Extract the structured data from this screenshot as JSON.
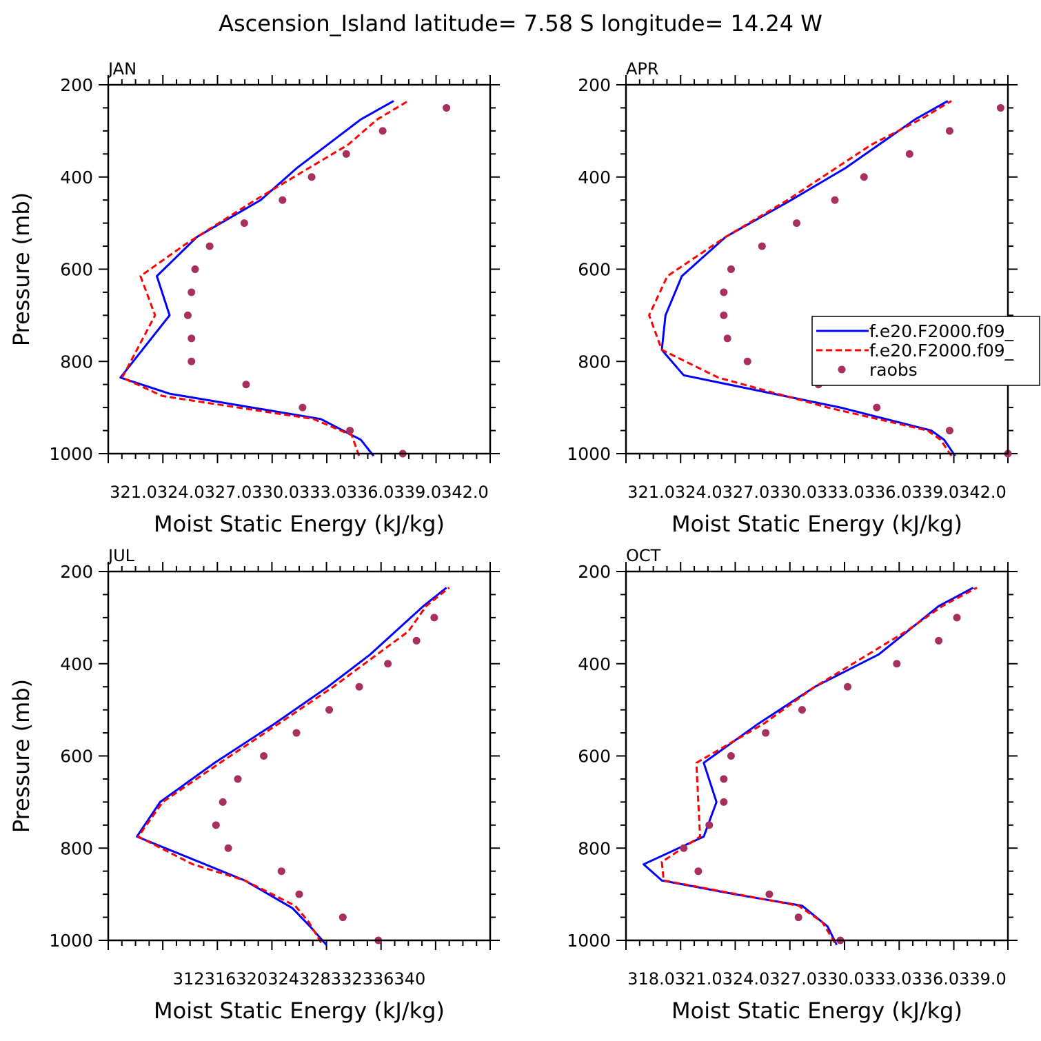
{
  "figure": {
    "title": "Ascension_Island  latitude= 7.58 S longitude= 14.24 W"
  },
  "colors": {
    "model1": "#0000ff",
    "model2": "#ff0000",
    "raobs": "#a8305e",
    "axis": "#000000"
  },
  "legend": {
    "panel": 1,
    "entries": [
      {
        "label": "f.e20.F2000.f09_",
        "style": "solid",
        "color": "#0000ff"
      },
      {
        "label": "f.e20.F2000.f09_",
        "style": "dashed",
        "color": "#ff0000"
      },
      {
        "label": "raobs",
        "style": "marker",
        "color": "#a8305e"
      }
    ]
  },
  "chart_data": [
    {
      "type": "line",
      "panel_title": "JAN",
      "xlabel": "Moist Static Energy (kJ/kg)",
      "ylabel": "Pressure (mb)",
      "xlim": [
        321.03,
        342.0
      ],
      "ylim": [
        1000,
        200
      ],
      "xticks": [
        321.03,
        324.03,
        327.03,
        330.03,
        333.03,
        336.03,
        339.03,
        342.0
      ],
      "xtick_labels": [
        "321.0",
        "324.0",
        "327.0",
        "330.0",
        "333.0",
        "336.0",
        "339.0",
        "342.0"
      ],
      "yticks": [
        200,
        400,
        600,
        800,
        1000
      ],
      "ytick_labels": [
        "200",
        "400",
        "600",
        "800",
        "1000"
      ],
      "series": [
        {
          "name": "f.e20.F2000.f09_",
          "style": "solid",
          "p": [
            1005,
            970,
            925,
            870,
            835,
            700,
            615,
            530,
            450,
            380,
            275,
            235
          ],
          "mse": [
            335.6,
            334.9,
            332.7,
            324.4,
            321.7,
            324.4,
            323.7,
            325.9,
            329.4,
            331.4,
            334.9,
            336.7
          ]
        },
        {
          "name": "f.e20.F2000.f09_",
          "style": "dashed",
          "p": [
            1005,
            960,
            925,
            875,
            835,
            700,
            615,
            545,
            450,
            330,
            275,
            235
          ],
          "mse": [
            334.8,
            334.4,
            332.3,
            324.0,
            321.8,
            323.6,
            322.8,
            325.3,
            329.1,
            334.2,
            335.8,
            337.5
          ]
        },
        {
          "name": "raobs",
          "style": "marker",
          "p": [
            1000,
            950,
            900,
            850,
            800,
            750,
            700,
            650,
            600,
            550,
            500,
            450,
            400,
            350,
            300,
            250
          ],
          "mse": [
            337.2,
            334.3,
            331.7,
            328.6,
            325.6,
            325.6,
            325.4,
            325.6,
            325.8,
            326.6,
            328.5,
            330.6,
            332.2,
            334.1,
            336.1,
            339.6
          ]
        }
      ]
    },
    {
      "type": "line",
      "panel_title": "APR",
      "xlabel": "Moist Static Energy (kJ/kg)",
      "ylabel": "",
      "xlim": [
        321.03,
        342.0
      ],
      "ylim": [
        1000,
        200
      ],
      "xticks": [
        321.03,
        324.03,
        327.03,
        330.03,
        333.03,
        336.03,
        339.03,
        342.0
      ],
      "xtick_labels": [
        "321.0",
        "324.0",
        "327.0",
        "330.0",
        "333.0",
        "336.0",
        "339.0",
        "342.0"
      ],
      "yticks": [
        200,
        400,
        600,
        800,
        1000
      ],
      "ytick_labels": [
        "200",
        "400",
        "600",
        "800",
        "1000"
      ],
      "series": [
        {
          "name": "f.e20.F2000.f09_",
          "style": "solid",
          "p": [
            1005,
            970,
            950,
            900,
            830,
            775,
            700,
            615,
            530,
            450,
            380,
            275,
            235
          ],
          "mse": [
            339.1,
            338.5,
            337.8,
            332.8,
            324.2,
            323.0,
            323.2,
            324.1,
            326.5,
            330.1,
            333.1,
            336.9,
            338.7
          ]
        },
        {
          "name": "f.e20.F2000.f09_",
          "style": "dashed",
          "p": [
            1005,
            970,
            950,
            900,
            835,
            775,
            700,
            615,
            530,
            450,
            330,
            275,
            235
          ],
          "mse": [
            338.9,
            338.3,
            337.6,
            332.1,
            326.1,
            323.0,
            322.3,
            323.3,
            326.5,
            329.9,
            334.5,
            337.2,
            338.9
          ]
        },
        {
          "name": "raobs",
          "style": "marker",
          "p": [
            1000,
            950,
            900,
            850,
            800,
            750,
            700,
            650,
            600,
            550,
            500,
            450,
            400,
            350,
            300,
            250
          ],
          "mse": [
            342.0,
            338.8,
            334.8,
            331.6,
            327.7,
            326.6,
            326.4,
            326.4,
            326.8,
            328.5,
            330.4,
            332.5,
            334.1,
            336.6,
            338.8,
            341.6
          ]
        }
      ]
    },
    {
      "type": "line",
      "panel_title": "JUL",
      "xlabel": "Moist Static Energy (kJ/kg)",
      "ylabel": "Pressure (mb)",
      "xlim": [
        312,
        340
      ],
      "ylim": [
        1000,
        200
      ],
      "xticks": [
        312,
        316,
        320,
        324,
        328,
        332,
        336,
        340
      ],
      "xtick_labels": [
        "312",
        "316",
        "320",
        "324",
        "328",
        "332",
        "336",
        "340"
      ],
      "yticks": [
        200,
        400,
        600,
        800,
        1000
      ],
      "ytick_labels": [
        "200",
        "400",
        "600",
        "800",
        "1000"
      ],
      "series": [
        {
          "name": "f.e20.F2000.f09_",
          "style": "solid",
          "p": [
            1010,
            970,
            930,
            870,
            775,
            700,
            615,
            530,
            450,
            380,
            275,
            235
          ],
          "mse": [
            328.0,
            326.8,
            325.5,
            322.0,
            314.1,
            315.8,
            319.8,
            324.2,
            328.1,
            331.2,
            335.1,
            336.8
          ]
        },
        {
          "name": "f.e20.F2000.f09_",
          "style": "dashed",
          "p": [
            1005,
            960,
            925,
            870,
            835,
            775,
            700,
            615,
            530,
            450,
            330,
            275,
            235
          ],
          "mse": [
            327.6,
            326.7,
            325.7,
            322.0,
            318.2,
            314.2,
            316.0,
            320.2,
            324.5,
            328.5,
            334.0,
            335.3,
            337.0
          ]
        },
        {
          "name": "raobs",
          "style": "marker",
          "p": [
            1000,
            950,
            900,
            850,
            800,
            750,
            700,
            650,
            600,
            550,
            500,
            450,
            400,
            350,
            300
          ],
          "mse": [
            331.8,
            329.2,
            326.0,
            324.7,
            320.8,
            319.9,
            320.4,
            321.5,
            323.4,
            325.8,
            328.2,
            330.4,
            332.5,
            334.6,
            335.9
          ]
        }
      ]
    },
    {
      "type": "line",
      "panel_title": "OCT",
      "xlabel": "Moist Static Energy (kJ/kg)",
      "ylabel": "",
      "xlim": [
        318.03,
        339.0
      ],
      "ylim": [
        1000,
        200
      ],
      "xticks": [
        318.03,
        321.03,
        324.03,
        327.03,
        330.03,
        333.03,
        336.03,
        339.0
      ],
      "xtick_labels": [
        "318.0",
        "321.0",
        "324.0",
        "327.0",
        "330.0",
        "333.0",
        "336.0",
        "339.0"
      ],
      "yticks": [
        200,
        400,
        600,
        800,
        1000
      ],
      "ytick_labels": [
        "200",
        "400",
        "600",
        "800",
        "1000"
      ],
      "series": [
        {
          "name": "f.e20.F2000.f09_",
          "style": "solid",
          "p": [
            1010,
            970,
            925,
            900,
            870,
            835,
            775,
            700,
            615,
            530,
            450,
            380,
            275,
            235
          ],
          "mse": [
            329.6,
            329.1,
            327.7,
            324.0,
            320.0,
            319.0,
            322.3,
            323.0,
            322.3,
            325.3,
            328.4,
            331.9,
            335.2,
            337.1
          ]
        },
        {
          "name": "f.e20.F2000.f09_",
          "style": "dashed",
          "p": [
            1005,
            960,
            925,
            870,
            830,
            775,
            700,
            615,
            530,
            450,
            330,
            275,
            235
          ],
          "mse": [
            329.5,
            328.8,
            327.5,
            320.1,
            320.0,
            322.1,
            322.0,
            321.9,
            325.6,
            328.4,
            333.4,
            335.4,
            337.3
          ]
        },
        {
          "name": "raobs",
          "style": "marker",
          "p": [
            1000,
            950,
            900,
            850,
            800,
            750,
            700,
            650,
            600,
            550,
            500,
            450,
            400,
            350,
            300
          ],
          "mse": [
            329.8,
            327.5,
            325.9,
            322.0,
            321.2,
            322.6,
            323.4,
            323.4,
            323.8,
            325.7,
            327.7,
            330.2,
            332.9,
            335.2,
            336.2
          ]
        }
      ]
    }
  ]
}
